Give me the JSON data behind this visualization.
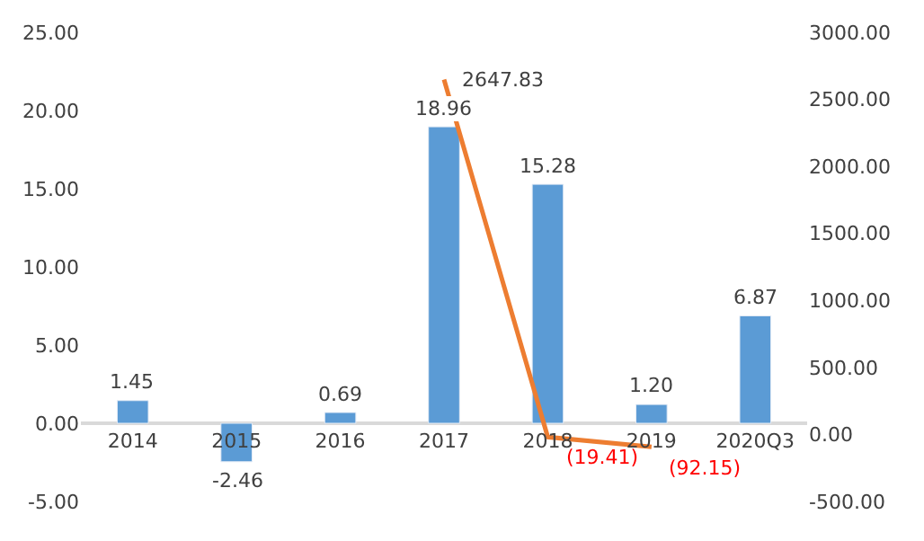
{
  "chart_data": {
    "type": "bar",
    "categories": [
      "2014",
      "2015",
      "2016",
      "2017",
      "2018",
      "2019",
      "2020Q3"
    ],
    "series": [
      {
        "color": "#5b9bd5",
        "values": [
          1.45,
          -2.46,
          0.69,
          18.96,
          15.28,
          1.2,
          6.87
        ],
        "value_labels": [
          "1.45",
          "-2.46",
          "0.69",
          "18.96",
          "15.28",
          "1.20",
          "6.87"
        ]
      },
      {
        "type": "line",
        "axis": "y2",
        "color": "#ed7d31",
        "values": [
          null,
          null,
          null,
          2647.83,
          -19.41,
          -92.15,
          null
        ],
        "value_labels": [
          null,
          null,
          null,
          "2647.83",
          "(19.41)",
          "(92.15)",
          null
        ]
      }
    ],
    "ylim": [
      -5,
      25
    ],
    "yticks": [
      {
        "value": -5,
        "label": "-5.00"
      },
      {
        "value": 0,
        "label": "0.00"
      },
      {
        "value": 5,
        "label": "5.00"
      },
      {
        "value": 10,
        "label": "10.00"
      },
      {
        "value": 15,
        "label": "15.00"
      },
      {
        "value": 20,
        "label": "20.00"
      },
      {
        "value": 25,
        "label": "25.00"
      }
    ],
    "y2lim": [
      -500,
      3000
    ],
    "y2ticks": [
      {
        "value": -500,
        "label": "-500.00"
      },
      {
        "value": 0,
        "label": "0.00"
      },
      {
        "value": 500,
        "label": "500.00"
      },
      {
        "value": 1000,
        "label": "1000.00"
      },
      {
        "value": 1500,
        "label": "1500.00"
      },
      {
        "value": 2000,
        "label": "2000.00"
      },
      {
        "value": 2500,
        "label": "2500.00"
      },
      {
        "value": 3000,
        "label": "3000.00"
      }
    ],
    "marker": "none"
  }
}
